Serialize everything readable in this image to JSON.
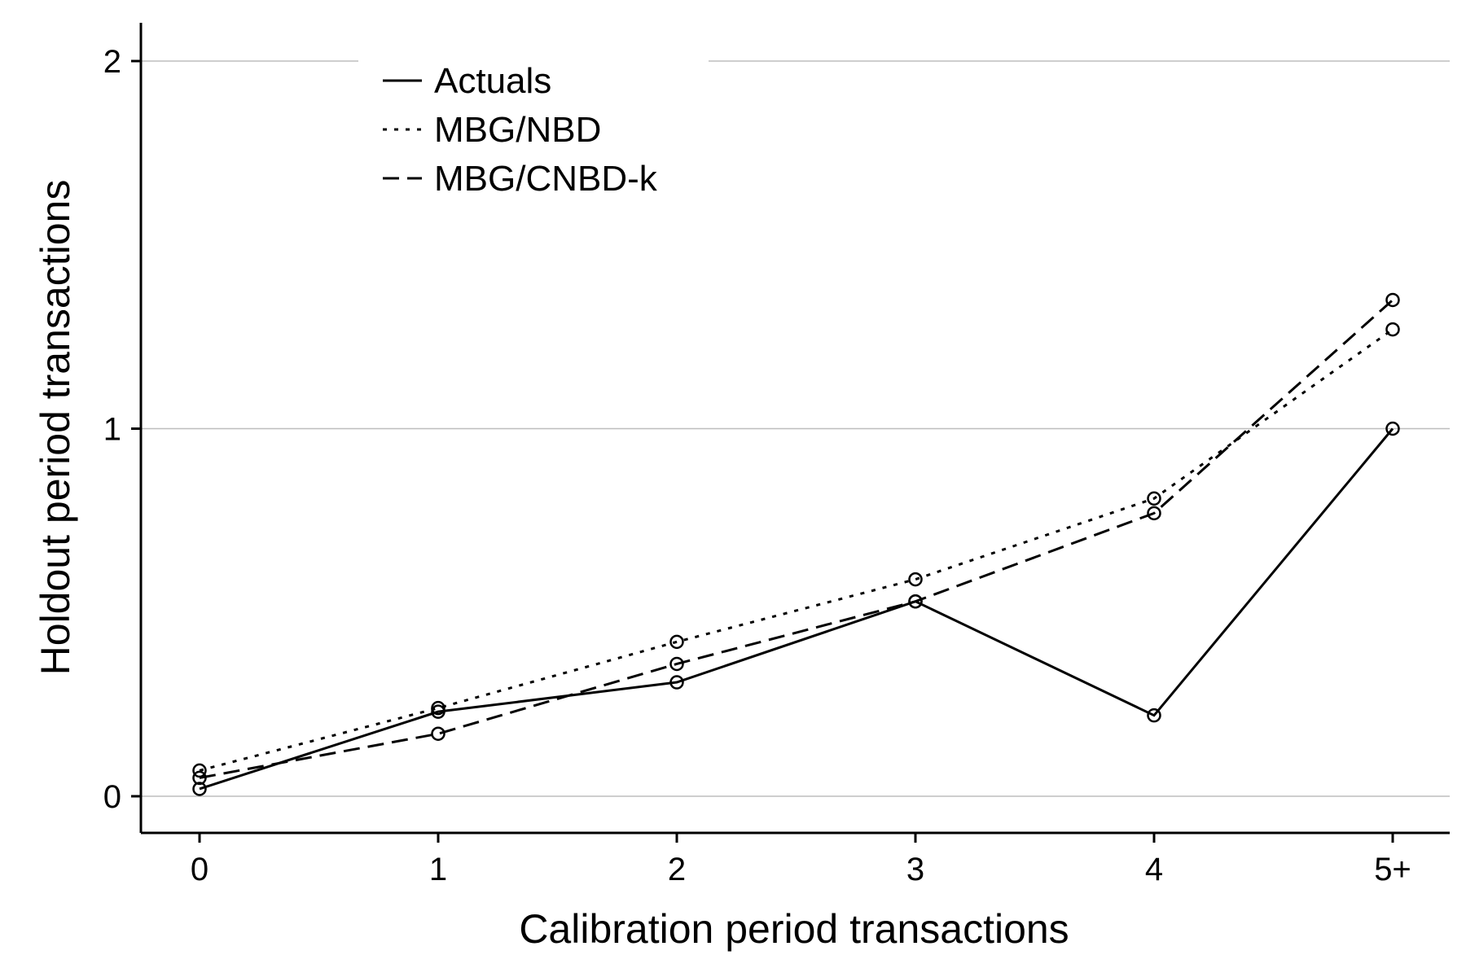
{
  "chart_data": {
    "type": "line",
    "title": "",
    "xlabel": "Calibration period transactions",
    "ylabel": "Holdout period transactions",
    "categories": [
      "0",
      "1",
      "2",
      "3",
      "4",
      "5+"
    ],
    "ylim": [
      0,
      2
    ],
    "yticks": [
      0,
      1,
      2
    ],
    "grid": true,
    "legend_position": "top-left",
    "series": [
      {
        "name": "Actuals",
        "style": "solid",
        "values": [
          0.02,
          0.23,
          0.31,
          0.53,
          0.22,
          1.0
        ]
      },
      {
        "name": "MBG/NBD",
        "style": "dotted",
        "values": [
          0.07,
          0.24,
          0.42,
          0.59,
          0.81,
          1.27
        ]
      },
      {
        "name": "MBG/CNBD-k",
        "style": "dashed",
        "values": [
          0.05,
          0.17,
          0.36,
          0.53,
          0.77,
          1.35
        ]
      }
    ]
  }
}
